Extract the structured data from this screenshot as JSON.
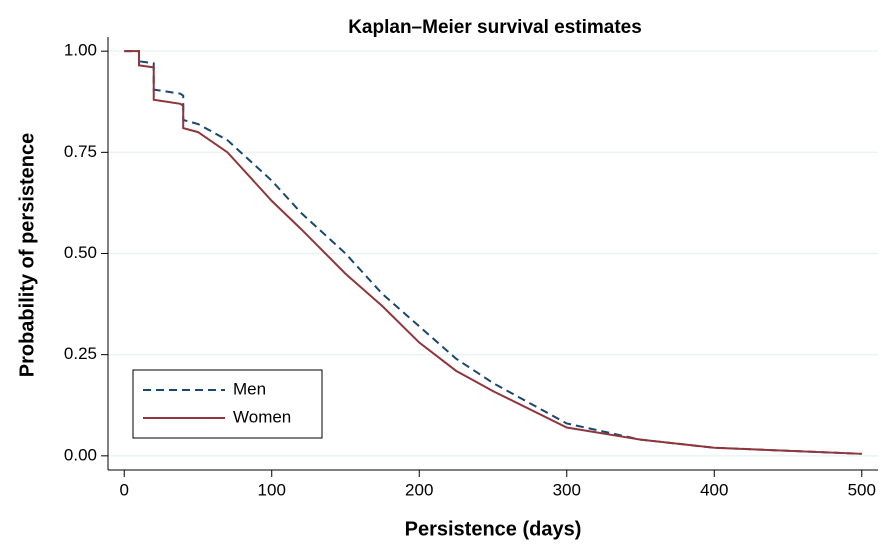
{
  "chart_data": {
    "type": "line",
    "title": "Kaplan–Meier survival estimates",
    "x_label": "Persistence (days)",
    "y_label": "Probability of persistence",
    "x": [
      0,
      10,
      10,
      20,
      20,
      38,
      40,
      40,
      50,
      70,
      100,
      120,
      150,
      175,
      200,
      225,
      250,
      300,
      350,
      400,
      500
    ],
    "series": [
      {
        "name": "Men",
        "color": "#1a476f",
        "dash": "8,5",
        "values": [
          1,
          1,
          0.975,
          0.97,
          0.905,
          0.895,
          0.89,
          0.83,
          0.82,
          0.78,
          0.68,
          0.6,
          0.5,
          0.4,
          0.32,
          0.24,
          0.18,
          0.08,
          0.04,
          0.02,
          0.005
        ]
      },
      {
        "name": "Women",
        "color": "#90353b",
        "values": [
          1,
          1,
          0.965,
          0.96,
          0.88,
          0.87,
          0.865,
          0.81,
          0.8,
          0.75,
          0.63,
          0.56,
          0.45,
          0.37,
          0.28,
          0.21,
          0.16,
          0.07,
          0.04,
          0.02,
          0.005
        ]
      }
    ],
    "xlim": [
      -11,
      511
    ],
    "ylim": [
      -0.035,
      1.035
    ],
    "xticks": [
      0,
      100,
      200,
      300,
      400,
      500
    ],
    "yticks": [
      {
        "value": 0,
        "label": "0.00"
      },
      0.25,
      {
        "value": 0.5,
        "label": "0.50"
      },
      {
        "value": 0.75,
        "label": "0.75"
      },
      {
        "value": 1,
        "label": "1.00"
      }
    ],
    "grid": true,
    "legend": "lower left"
  }
}
